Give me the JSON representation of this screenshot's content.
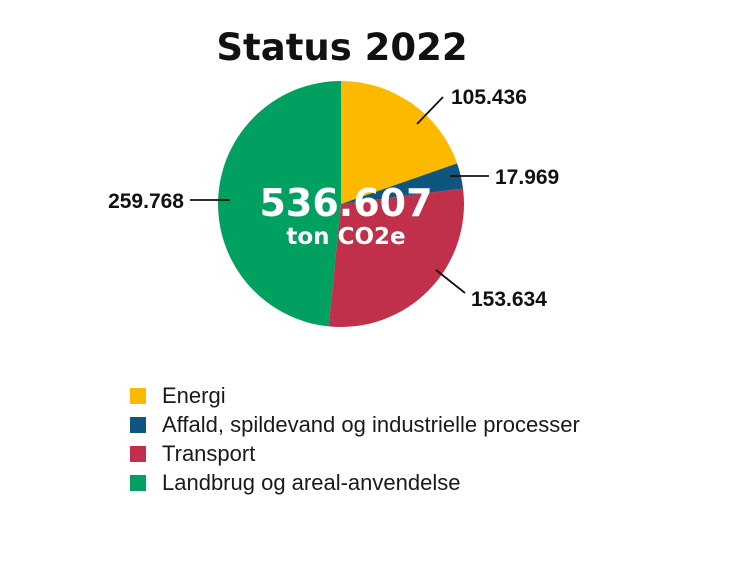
{
  "chart_data": {
    "type": "pie",
    "title": "Status 2022",
    "center_total": "536.607",
    "center_unit": "ton CO2e",
    "categories": [
      "Energi",
      "Affald, spildevand og industrielle processer",
      "Transport",
      "Landbrug og areal-anvendelse"
    ],
    "values": [
      105436,
      17969,
      153634,
      259768
    ],
    "value_labels": [
      "105.436",
      "17.969",
      "153.634",
      "259.768"
    ],
    "colors": [
      "#FBBA00",
      "#0E5580",
      "#C1304A",
      "#00A060"
    ],
    "legend_position": "bottom"
  }
}
